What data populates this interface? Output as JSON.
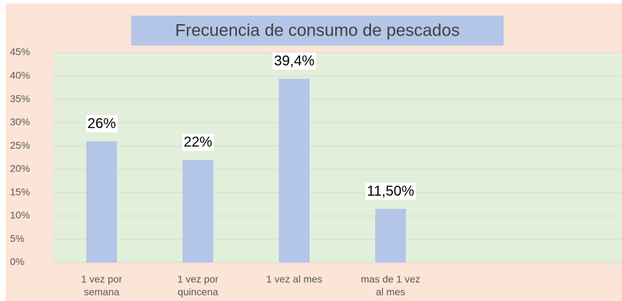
{
  "chart_data": {
    "type": "bar",
    "title": "Frecuencia de consumo de pescados",
    "categories": [
      "1 vez por semana",
      "1 vez por quincena",
      "1 vez al mes",
      "mas de 1 vez al mes"
    ],
    "values": [
      26,
      22,
      39.4,
      11.5
    ],
    "value_labels": [
      "26%",
      "22%",
      "39,4%",
      "11,50%"
    ],
    "color": "#b4c6e7",
    "ylim": [
      0,
      45
    ],
    "yticks": [
      {
        "value": 0,
        "label": "0%"
      },
      {
        "value": 5,
        "label": "5%"
      },
      {
        "value": 10,
        "label": "10%"
      },
      {
        "value": 15,
        "label": "15%"
      },
      {
        "value": 20,
        "label": "20%"
      },
      {
        "value": 25,
        "label": "25%"
      },
      {
        "value": 30,
        "label": "30%"
      },
      {
        "value": 35,
        "label": "35%"
      },
      {
        "value": 40,
        "label": "40%"
      },
      {
        "value": 45,
        "label": "45%"
      }
    ],
    "grid": true
  }
}
